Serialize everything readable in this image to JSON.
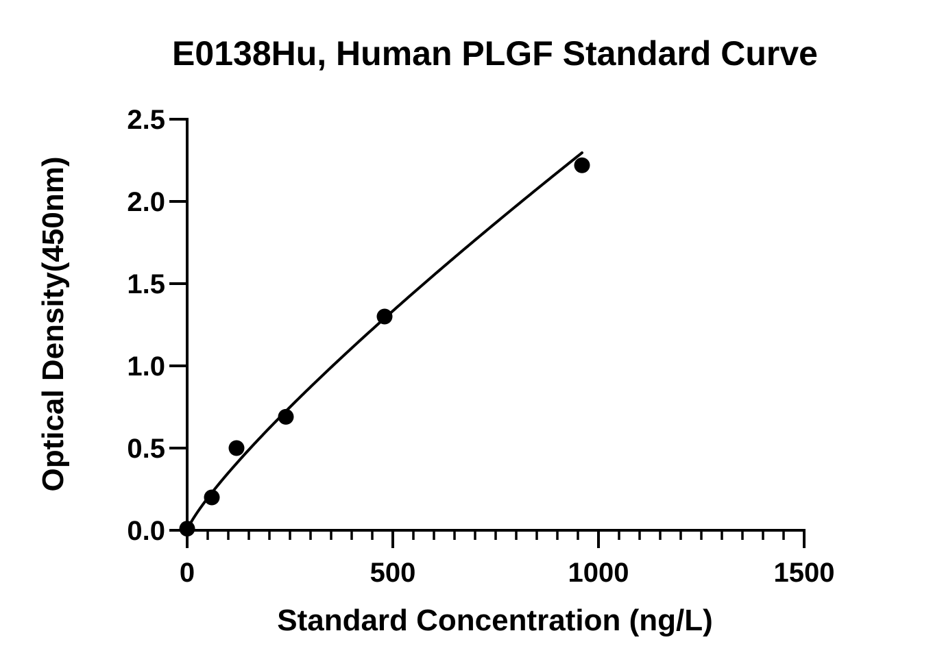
{
  "chart_data": {
    "type": "scatter",
    "title": "E0138Hu, Human PLGF Standard Curve",
    "xlabel": "Standard Concentration (ng/L)",
    "ylabel": "Optical Density(450nm)",
    "xlim": [
      0,
      1500
    ],
    "ylim": [
      0,
      2.5
    ],
    "x_ticks": [
      0,
      500,
      1000,
      1500
    ],
    "x_tick_labels": [
      "0",
      "500",
      "1000",
      "1500"
    ],
    "x_minor_step": 50,
    "y_ticks": [
      0,
      0.5,
      1.0,
      1.5,
      2.0,
      2.5
    ],
    "y_tick_labels": [
      "0.0",
      "0.5",
      "1.0",
      "1.5",
      "2.0",
      "2.5"
    ],
    "grid": false,
    "legend": "none",
    "series": [
      {
        "x": [
          0,
          60,
          120,
          240,
          480,
          960
        ],
        "y": [
          0.01,
          0.2,
          0.5,
          0.69,
          1.3,
          2.22
        ]
      }
    ],
    "fit_curve": {
      "type": "smooth",
      "x_range": [
        0,
        960
      ]
    },
    "colors": {
      "marker": "#000000",
      "line": "#000000",
      "axis": "#000000"
    }
  }
}
